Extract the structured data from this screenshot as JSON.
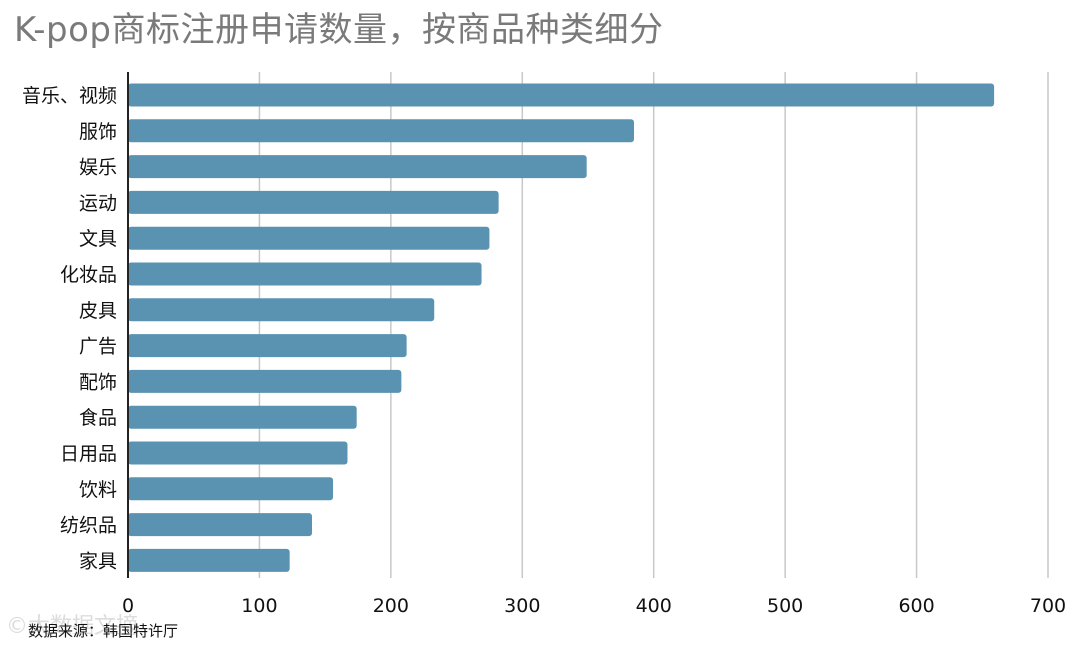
{
  "title": "K-pop商标注册申请数量，按商品种类细分",
  "source": "数据来源：韩国特许厅",
  "colors": {
    "bar": "#5a93b1",
    "grid": "#c8c8c8",
    "axis": "#222222",
    "title": "#7a7a7a"
  },
  "chart_data": {
    "type": "bar",
    "orientation": "horizontal",
    "title": "K-pop商标注册申请数量，按商品种类细分",
    "xlabel": "",
    "ylabel": "",
    "xlim": [
      0,
      700
    ],
    "xticks": [
      0,
      100,
      200,
      300,
      400,
      500,
      600,
      700
    ],
    "grid": true,
    "categories": [
      "音乐、视频",
      "服饰",
      "娱乐",
      "运动",
      "文具",
      "化妆品",
      "皮具",
      "广告",
      "配饰",
      "食品",
      "日用品",
      "饮料",
      "纺织品",
      "家具"
    ],
    "values": [
      659,
      385,
      349,
      282,
      275,
      269,
      233,
      212,
      208,
      174,
      167,
      156,
      140,
      123
    ]
  }
}
